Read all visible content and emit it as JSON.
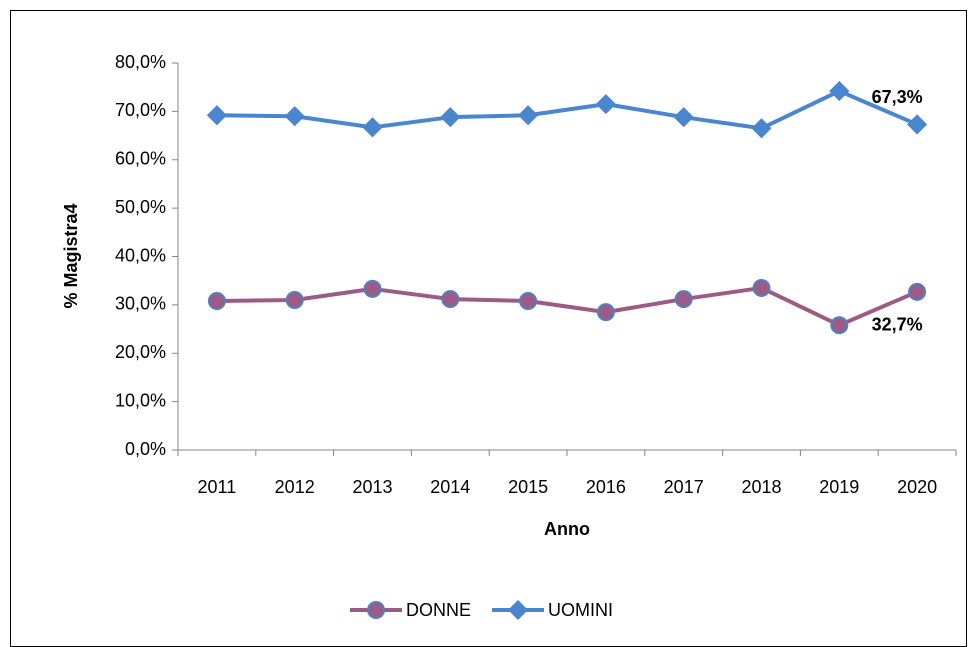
{
  "chart_data": {
    "type": "line",
    "x_label": "Anno",
    "y_label": "% Magistra4",
    "categories": [
      "2011",
      "2012",
      "2013",
      "2014",
      "2015",
      "2016",
      "2017",
      "2018",
      "2019",
      "2020"
    ],
    "series": [
      {
        "name": "DONNE",
        "color": "#9e5a87",
        "marker": "circle",
        "marker_fill": "#9e5a87",
        "marker_stroke": "#4f81bd",
        "values": [
          30.8,
          31.0,
          33.3,
          31.2,
          30.8,
          28.5,
          31.2,
          33.5,
          25.8,
          32.7
        ],
        "value_labels": [
          null,
          null,
          null,
          null,
          null,
          null,
          null,
          null,
          null,
          "32,7%"
        ]
      },
      {
        "name": "UOMINI",
        "color": "#4a86d0",
        "marker": "diamond",
        "marker_fill": "#4a86d0",
        "marker_stroke": "#4a86d0",
        "values": [
          69.2,
          69.0,
          66.7,
          68.8,
          69.2,
          71.5,
          68.8,
          66.5,
          74.2,
          67.3
        ],
        "value_labels": [
          null,
          null,
          null,
          null,
          null,
          null,
          null,
          null,
          null,
          "67,3%"
        ]
      }
    ],
    "ylim": [
      0,
      80
    ],
    "yticks": [
      {
        "value": 0,
        "label": "0,0%"
      },
      {
        "value": 10,
        "label": "10,0%"
      },
      {
        "value": 20,
        "label": "20,0%"
      },
      {
        "value": 30,
        "label": "30,0%"
      },
      {
        "value": 40,
        "label": "40,0%"
      },
      {
        "value": 50,
        "label": "50,0%"
      },
      {
        "value": 60,
        "label": "60,0%"
      },
      {
        "value": 70,
        "label": "70,0%"
      },
      {
        "value": 80,
        "label": "80,0%"
      }
    ],
    "grid": false,
    "legend": "bottom"
  }
}
